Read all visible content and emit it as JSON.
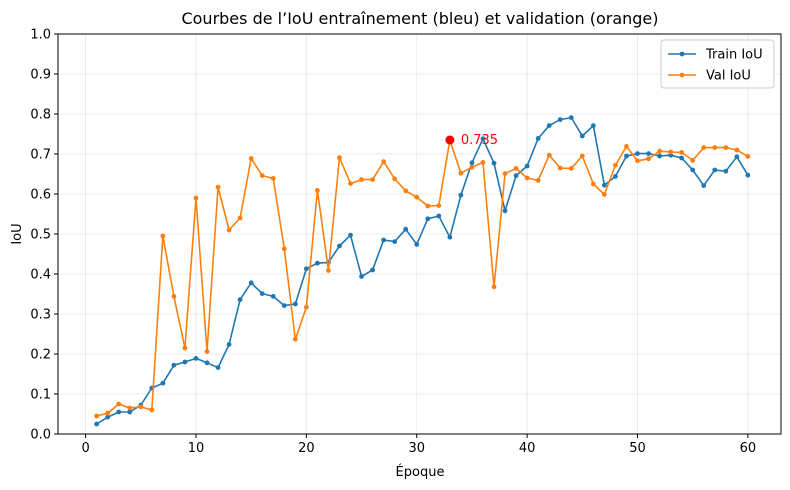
{
  "chart_data": {
    "type": "line",
    "title": "Courbes de l’IoU entraînement (bleu) et validation (orange)",
    "xlabel": "Époque",
    "ylabel": "IoU",
    "xlim": [
      -2.5,
      63
    ],
    "ylim": [
      0.0,
      1.0
    ],
    "xticks": [
      0,
      10,
      20,
      30,
      40,
      50,
      60
    ],
    "yticks": [
      0.0,
      0.1,
      0.2,
      0.3,
      0.4,
      0.5,
      0.6,
      0.7,
      0.8,
      0.9,
      1.0
    ],
    "ytick_labels": [
      "0.0",
      "0.1",
      "0.2",
      "0.3",
      "0.4",
      "0.5",
      "0.6",
      "0.7",
      "0.8",
      "0.9",
      "1.0"
    ],
    "grid": true,
    "legend_position": "top-right",
    "x": [
      1,
      2,
      3,
      4,
      5,
      6,
      7,
      8,
      9,
      10,
      11,
      12,
      13,
      14,
      15,
      16,
      17,
      18,
      19,
      20,
      21,
      22,
      23,
      24,
      25,
      26,
      27,
      28,
      29,
      30,
      31,
      32,
      33,
      34,
      35,
      36,
      37,
      38,
      39,
      40,
      41,
      42,
      43,
      44,
      45,
      46,
      47,
      48,
      49,
      50,
      51,
      52,
      53,
      54,
      55,
      56,
      57,
      58,
      59,
      60
    ],
    "series": [
      {
        "name": "Train IoU",
        "color": "#1f77b4",
        "values": [
          0.025,
          0.042,
          0.055,
          0.055,
          0.072,
          0.115,
          0.127,
          0.172,
          0.18,
          0.189,
          0.178,
          0.166,
          0.224,
          0.336,
          0.378,
          0.351,
          0.344,
          0.321,
          0.325,
          0.413,
          0.427,
          0.429,
          0.47,
          0.497,
          0.394,
          0.41,
          0.485,
          0.481,
          0.512,
          0.474,
          0.538,
          0.545,
          0.492,
          0.597,
          0.678,
          0.738,
          0.677,
          0.558,
          0.646,
          0.67,
          0.739,
          0.771,
          0.786,
          0.791,
          0.745,
          0.771,
          0.622,
          0.644,
          0.695,
          0.701,
          0.701,
          0.695,
          0.697,
          0.69,
          0.66,
          0.621,
          0.66,
          0.657,
          0.693,
          0.647
        ]
      },
      {
        "name": "Val IoU",
        "color": "#ff7f0e",
        "values": [
          0.045,
          0.052,
          0.075,
          0.065,
          0.068,
          0.06,
          0.495,
          0.344,
          0.215,
          0.59,
          0.206,
          0.617,
          0.51,
          0.54,
          0.689,
          0.646,
          0.639,
          0.463,
          0.237,
          0.317,
          0.609,
          0.409,
          0.691,
          0.626,
          0.636,
          0.636,
          0.681,
          0.638,
          0.608,
          0.592,
          0.57,
          0.571,
          0.735,
          0.652,
          0.667,
          0.679,
          0.368,
          0.651,
          0.664,
          0.64,
          0.634,
          0.697,
          0.665,
          0.664,
          0.695,
          0.625,
          0.599,
          0.672,
          0.719,
          0.683,
          0.688,
          0.707,
          0.705,
          0.704,
          0.684,
          0.716,
          0.716,
          0.716,
          0.71,
          0.694
        ]
      }
    ],
    "annotation": {
      "x": 33,
      "y": 0.735,
      "text": "0.735",
      "color": "#ff0000"
    }
  }
}
